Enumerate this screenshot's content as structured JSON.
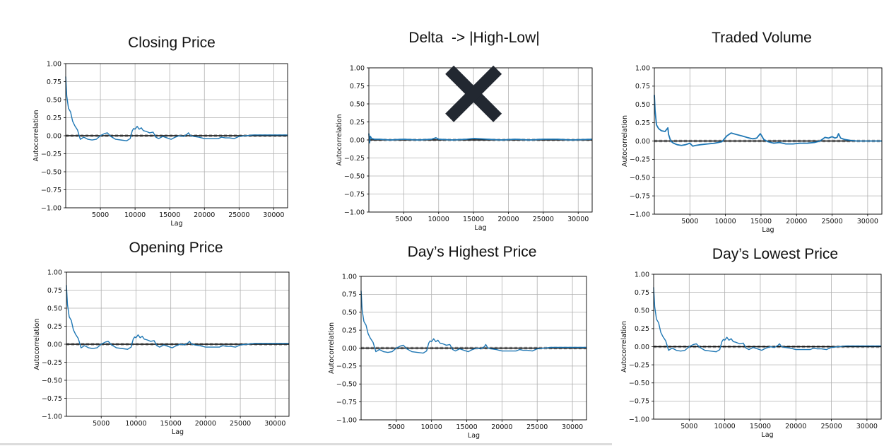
{
  "colors": {
    "series": "#1f77b4",
    "zero_line": "#000000",
    "dashed_line": "#a0a0a0",
    "grid": "#b0b0b0",
    "cross_icon": "#222831"
  },
  "chart_data": [
    {
      "type": "line",
      "title": "Closing Price",
      "xlabel": "Lag",
      "ylabel": "Autocorrelation",
      "xlim": [
        0,
        32000
      ],
      "ylim": [
        -1.0,
        1.0
      ],
      "xticks": [
        "5000",
        "10000",
        "15000",
        "20000",
        "25000",
        "30000"
      ],
      "yticks": [
        "1.00",
        "0.75",
        "0.50",
        "0.25",
        "0.00",
        "−0.25",
        "−0.50",
        "−0.75",
        "−1.00"
      ],
      "grid": true,
      "noisy": false,
      "crossed_out": false,
      "series": [
        {
          "x": [
            0,
            150,
            400,
            700,
            1000,
            1300,
            1700,
            2100,
            2600,
            3200,
            3800,
            4400,
            5000,
            5600,
            6000,
            6500,
            7200,
            8000,
            8800,
            9300,
            9600,
            9800,
            10000,
            10300,
            10600,
            10900,
            11200,
            11600,
            12100,
            12600,
            13000,
            13400,
            14000,
            14600,
            15200,
            15800,
            16400,
            17000,
            17500,
            17700,
            18000,
            18500,
            19200,
            20000,
            21000,
            22000,
            22500,
            23000,
            23600,
            24300,
            25000,
            26000,
            27000,
            28000,
            29000,
            30000,
            31000,
            32000
          ],
          "y": [
            0.82,
            0.55,
            0.38,
            0.33,
            0.2,
            0.14,
            0.08,
            -0.05,
            -0.02,
            -0.05,
            -0.06,
            -0.05,
            0.0,
            0.03,
            0.04,
            -0.01,
            -0.05,
            -0.06,
            -0.07,
            -0.04,
            0.07,
            0.1,
            0.09,
            0.13,
            0.09,
            0.11,
            0.07,
            0.06,
            0.04,
            0.05,
            -0.02,
            -0.04,
            -0.01,
            -0.03,
            -0.05,
            -0.02,
            0.0,
            -0.01,
            0.02,
            0.04,
            0.0,
            -0.01,
            -0.02,
            -0.04,
            -0.04,
            -0.04,
            -0.02,
            -0.03,
            -0.03,
            -0.04,
            -0.01,
            0.0,
            0.01,
            0.01,
            0.01,
            0.01,
            0.01,
            0.01
          ]
        }
      ]
    },
    {
      "type": "line",
      "title": "Delta  -> |High-Low|",
      "xlabel": "Lag",
      "ylabel": "Autocorrelation",
      "xlim": [
        0,
        32000
      ],
      "ylim": [
        -1.0,
        1.0
      ],
      "xticks": [
        "5000",
        "10000",
        "15000",
        "20000",
        "25000",
        "30000"
      ],
      "yticks": [
        "1.00",
        "0.75",
        "0.50",
        "0.25",
        "0.00",
        "−0.25",
        "−0.50",
        "−0.75",
        "−1.00"
      ],
      "grid": true,
      "noisy": true,
      "crossed_out": true,
      "series": [
        {
          "x": [
            0,
            100,
            200,
            400,
            800,
            1500,
            3000,
            5000,
            7000,
            9000,
            9600,
            10000,
            12000,
            14000,
            15000,
            17000,
            19000,
            21000,
            23000,
            25000,
            27000,
            29000,
            32000
          ],
          "y": [
            0.09,
            -0.04,
            0.05,
            0.02,
            0.01,
            0.01,
            0.0,
            0.01,
            0.0,
            0.01,
            0.03,
            0.01,
            0.0,
            0.01,
            0.02,
            0.01,
            0.0,
            0.01,
            0.0,
            0.01,
            0.01,
            0.0,
            0.01
          ]
        }
      ]
    },
    {
      "type": "line",
      "title": "Traded Volume",
      "xlabel": "Lag",
      "ylabel": "Autocorrelation",
      "xlim": [
        0,
        32000
      ],
      "ylim": [
        -1.0,
        1.0
      ],
      "xticks": [
        "5000",
        "10000",
        "15000",
        "20000",
        "25000",
        "30000"
      ],
      "yticks": [
        "1.00",
        "0.75",
        "0.50",
        "0.25",
        "0.00",
        "−0.25",
        "−0.50",
        "−0.75",
        "−1.00"
      ],
      "grid": true,
      "noisy": true,
      "crossed_out": false,
      "series": [
        {
          "x": [
            0,
            100,
            300,
            600,
            1000,
            1500,
            1900,
            2000,
            2300,
            2700,
            3200,
            3800,
            4400,
            5000,
            5400,
            5800,
            6500,
            7500,
            8500,
            9500,
            10200,
            10800,
            11500,
            12300,
            13000,
            13800,
            14400,
            14900,
            15100,
            15400,
            16000,
            16800,
            17600,
            18500,
            19500,
            20500,
            21500,
            22500,
            23300,
            24000,
            24500,
            25000,
            25400,
            25700,
            25900,
            26200,
            26800,
            27500,
            28500,
            29500,
            30500,
            32000
          ],
          "y": [
            0.63,
            0.42,
            0.22,
            0.17,
            0.14,
            0.13,
            0.18,
            0.09,
            0.0,
            -0.03,
            -0.05,
            -0.06,
            -0.05,
            -0.03,
            -0.07,
            -0.06,
            -0.05,
            -0.04,
            -0.03,
            -0.01,
            0.07,
            0.11,
            0.09,
            0.07,
            0.05,
            0.03,
            0.04,
            0.1,
            0.07,
            0.02,
            -0.01,
            -0.03,
            -0.02,
            -0.04,
            -0.04,
            -0.03,
            -0.03,
            -0.02,
            0.0,
            0.05,
            0.04,
            0.06,
            0.04,
            0.05,
            0.1,
            0.04,
            0.02,
            0.01,
            0.0,
            0.0,
            0.0,
            0.0
          ]
        }
      ]
    },
    {
      "type": "line",
      "title": "Opening Price",
      "xlabel": "Lag",
      "ylabel": "Autocorrelation",
      "xlim": [
        0,
        32000
      ],
      "ylim": [
        -1.0,
        1.0
      ],
      "xticks": [
        "5000",
        "10000",
        "15000",
        "20000",
        "25000",
        "30000"
      ],
      "yticks": [
        "1.00",
        "0.75",
        "0.50",
        "0.25",
        "0.00",
        "−0.25",
        "−0.50",
        "−0.75",
        "−1.00"
      ],
      "grid": true,
      "noisy": false,
      "crossed_out": false,
      "series": [
        {
          "x": [
            0,
            150,
            400,
            700,
            1000,
            1300,
            1700,
            2100,
            2600,
            3200,
            3800,
            4400,
            5000,
            5600,
            6000,
            6500,
            7200,
            8000,
            8800,
            9300,
            9600,
            9800,
            10000,
            10300,
            10600,
            10900,
            11200,
            11600,
            12100,
            12600,
            13000,
            13400,
            14000,
            14600,
            15200,
            15800,
            16400,
            17000,
            17500,
            17700,
            18000,
            18500,
            19200,
            20000,
            21000,
            22000,
            22500,
            23000,
            23600,
            24300,
            25000,
            26000,
            27000,
            28000,
            29000,
            30000,
            31000,
            32000
          ],
          "y": [
            0.82,
            0.55,
            0.38,
            0.33,
            0.2,
            0.14,
            0.08,
            -0.05,
            -0.02,
            -0.05,
            -0.06,
            -0.05,
            0.0,
            0.03,
            0.04,
            -0.01,
            -0.05,
            -0.06,
            -0.07,
            -0.04,
            0.07,
            0.1,
            0.09,
            0.13,
            0.09,
            0.11,
            0.07,
            0.06,
            0.04,
            0.05,
            -0.02,
            -0.04,
            -0.01,
            -0.03,
            -0.05,
            -0.02,
            0.0,
            -0.01,
            0.02,
            0.04,
            0.0,
            -0.01,
            -0.02,
            -0.04,
            -0.04,
            -0.04,
            -0.02,
            -0.03,
            -0.03,
            -0.04,
            -0.01,
            0.0,
            0.01,
            0.01,
            0.01,
            0.01,
            0.01,
            0.01
          ]
        }
      ]
    },
    {
      "type": "line",
      "title": "Day’s Highest Price",
      "xlabel": "Lag",
      "ylabel": "Autocorrelation",
      "xlim": [
        0,
        32000
      ],
      "ylim": [
        -1.0,
        1.0
      ],
      "xticks": [
        "5000",
        "10000",
        "15000",
        "20000",
        "25000",
        "30000"
      ],
      "yticks": [
        "1.00",
        "0.75",
        "0.50",
        "0.25",
        "0.00",
        "−0.25",
        "−0.50",
        "−0.75",
        "−1.00"
      ],
      "grid": true,
      "noisy": false,
      "crossed_out": false,
      "series": [
        {
          "x": [
            0,
            150,
            400,
            700,
            1000,
            1300,
            1700,
            2100,
            2600,
            3200,
            3800,
            4400,
            5000,
            5600,
            6000,
            6500,
            7200,
            8000,
            8800,
            9300,
            9600,
            9800,
            10000,
            10300,
            10600,
            10900,
            11200,
            11600,
            12100,
            12600,
            13000,
            13400,
            14000,
            14600,
            15200,
            15800,
            16400,
            17000,
            17500,
            17700,
            18000,
            18500,
            19200,
            20000,
            21000,
            22000,
            22500,
            23000,
            23600,
            24300,
            25000,
            26000,
            27000,
            28000,
            29000,
            30000,
            31000,
            32000
          ],
          "y": [
            0.8,
            0.53,
            0.37,
            0.32,
            0.2,
            0.14,
            0.08,
            -0.05,
            -0.02,
            -0.05,
            -0.06,
            -0.05,
            0.0,
            0.03,
            0.04,
            -0.01,
            -0.05,
            -0.06,
            -0.07,
            -0.04,
            0.07,
            0.1,
            0.09,
            0.13,
            0.09,
            0.11,
            0.07,
            0.06,
            0.04,
            0.05,
            -0.02,
            -0.04,
            -0.01,
            -0.03,
            -0.05,
            -0.02,
            0.0,
            -0.01,
            0.02,
            0.05,
            0.0,
            -0.01,
            -0.02,
            -0.04,
            -0.04,
            -0.04,
            -0.02,
            -0.03,
            -0.03,
            -0.04,
            -0.01,
            0.0,
            0.01,
            0.01,
            0.01,
            0.01,
            0.01,
            0.01
          ]
        }
      ]
    },
    {
      "type": "line",
      "title": "Day’s Lowest Price",
      "xlabel": "Lag",
      "ylabel": "Autocorrelation",
      "xlim": [
        0,
        32000
      ],
      "ylim": [
        -1.0,
        1.0
      ],
      "xticks": [
        "5000",
        "10000",
        "15000",
        "20000",
        "25000",
        "30000"
      ],
      "yticks": [
        "1.00",
        "0.75",
        "0.50",
        "0.25",
        "0.00",
        "−0.25",
        "−0.50",
        "−0.75",
        "−1.00"
      ],
      "grid": true,
      "noisy": false,
      "crossed_out": false,
      "series": [
        {
          "x": [
            0,
            150,
            400,
            700,
            1000,
            1300,
            1700,
            2100,
            2600,
            3200,
            3800,
            4400,
            5000,
            5600,
            6000,
            6500,
            7200,
            8000,
            8800,
            9300,
            9600,
            9800,
            10000,
            10300,
            10600,
            10900,
            11200,
            11600,
            12100,
            12600,
            13000,
            13400,
            14000,
            14600,
            15200,
            15800,
            16400,
            17000,
            17500,
            17700,
            18000,
            18500,
            19200,
            20000,
            21000,
            22000,
            22500,
            23000,
            23600,
            24300,
            25000,
            26000,
            27000,
            28000,
            29000,
            30000,
            31000,
            32000
          ],
          "y": [
            0.82,
            0.55,
            0.38,
            0.33,
            0.2,
            0.14,
            0.08,
            -0.05,
            -0.02,
            -0.05,
            -0.06,
            -0.05,
            0.0,
            0.03,
            0.04,
            -0.01,
            -0.05,
            -0.06,
            -0.07,
            -0.04,
            0.07,
            0.1,
            0.09,
            0.13,
            0.09,
            0.11,
            0.07,
            0.06,
            0.04,
            0.05,
            -0.02,
            -0.04,
            -0.01,
            -0.03,
            -0.05,
            -0.02,
            0.0,
            -0.01,
            0.02,
            0.04,
            0.0,
            -0.01,
            -0.02,
            -0.04,
            -0.04,
            -0.04,
            -0.02,
            -0.03,
            -0.03,
            -0.04,
            -0.01,
            0.0,
            0.01,
            0.01,
            0.01,
            0.01,
            0.01,
            0.01
          ]
        }
      ]
    }
  ]
}
